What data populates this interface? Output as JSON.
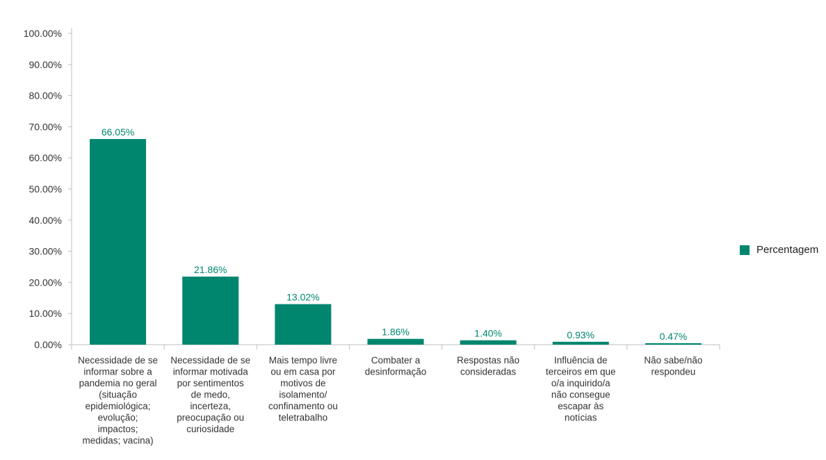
{
  "colors": {
    "bar": "#00866f",
    "label": "#00866f",
    "axis_text": "#333333",
    "axis_line": "#bfbfbf"
  },
  "chart_data": {
    "type": "bar",
    "categories": [
      "Necessidade de se informar sobre a pandemia no geral (situação epidemiológica; evolução; impactos; medidas; vacina)",
      "Necessidade de se informar motivada por sentimentos de medo, incerteza, preocupação ou curiosidade",
      "Mais tempo livre ou em casa por motivos de isolamento/ confinamento ou teletrabalho",
      "Combater a desinformação",
      "Respostas não consideradas",
      "Influência de terceiros em que o/a inquirido/a não consegue escapar às notícias",
      "Não sabe/não respondeu"
    ],
    "category_lines": [
      [
        "Necessidade de se",
        "informar sobre a",
        "pandemia no geral",
        "(situação",
        "epidemiológica;",
        "evolução;",
        "impactos;",
        "medidas; vacina)"
      ],
      [
        "Necessidade de se",
        "informar motivada",
        "por sentimentos",
        "de medo,",
        "incerteza,",
        "preocupação ou",
        "curiosidade"
      ],
      [
        "Mais tempo livre",
        "ou em casa por",
        "motivos de",
        "isolamento/",
        "confinamento ou",
        "teletrabalho"
      ],
      [
        "Combater a",
        "desinformação"
      ],
      [
        "Respostas não",
        "consideradas"
      ],
      [
        "Influência de",
        "terceiros em que",
        "o/a inquirido/a",
        "não consegue",
        "escapar às",
        "notícias"
      ],
      [
        "Não sabe/não",
        "respondeu"
      ]
    ],
    "series": [
      {
        "name": "Percentagem",
        "values": [
          66.05,
          21.86,
          13.02,
          1.86,
          1.4,
          0.93,
          0.47
        ]
      }
    ],
    "value_labels": [
      "66.05%",
      "21.86%",
      "13.02%",
      "1.86%",
      "1.40%",
      "0.93%",
      "0.47%"
    ],
    "y_ticks": [
      0,
      10,
      20,
      30,
      40,
      50,
      60,
      70,
      80,
      90,
      100
    ],
    "y_tick_labels": [
      "0.00%",
      "10.00%",
      "20.00%",
      "30.00%",
      "40.00%",
      "50.00%",
      "60.00%",
      "70.00%",
      "80.00%",
      "90.00%",
      "100.00%"
    ],
    "ylim": [
      0,
      100
    ],
    "grid": false,
    "legend_position": "right",
    "title": "",
    "xlabel": "",
    "ylabel": ""
  },
  "legend": {
    "label": "Percentagem"
  }
}
